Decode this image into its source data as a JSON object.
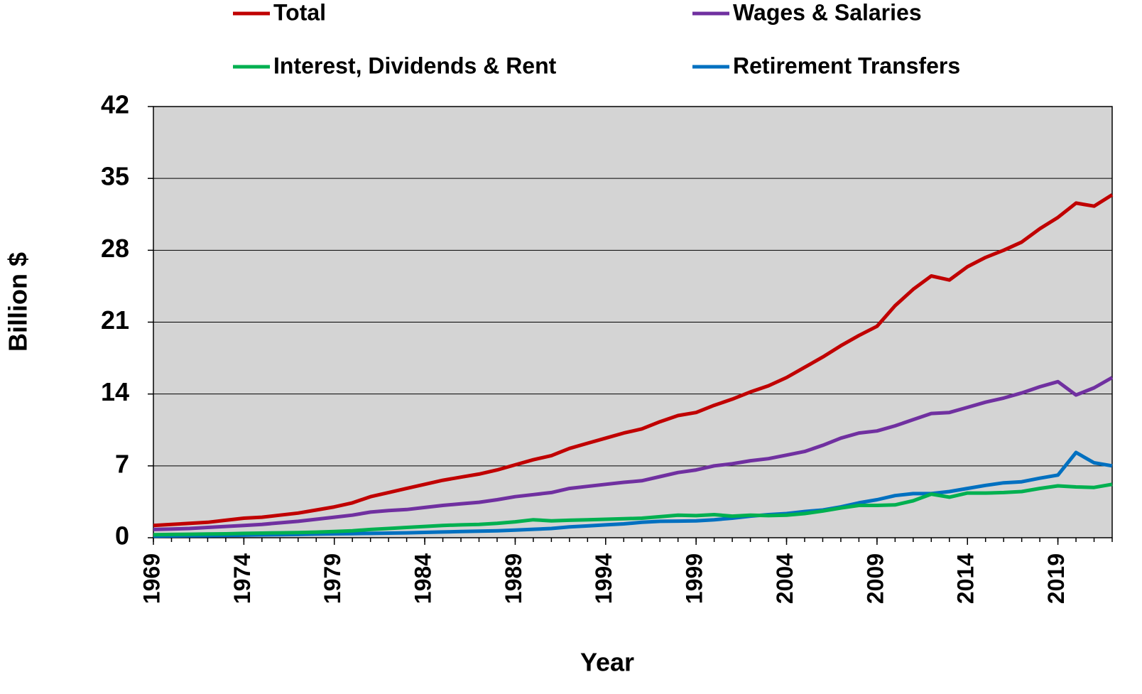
{
  "chart_data": {
    "type": "line",
    "x_label": "Year",
    "y_label": "Billion $",
    "x": [
      1969,
      1970,
      1971,
      1972,
      1973,
      1974,
      1975,
      1976,
      1977,
      1978,
      1979,
      1980,
      1981,
      1982,
      1983,
      1984,
      1985,
      1986,
      1987,
      1988,
      1989,
      1990,
      1991,
      1992,
      1993,
      1994,
      1995,
      1996,
      1997,
      1998,
      1999,
      2000,
      2001,
      2002,
      2003,
      2004,
      2005,
      2006,
      2007,
      2008,
      2009,
      2010,
      2011,
      2012,
      2013,
      2014,
      2015,
      2016,
      2017,
      2018,
      2019,
      2020,
      2021,
      2022
    ],
    "xlim": [
      1969,
      2022
    ],
    "xticks": [
      1969,
      1974,
      1979,
      1984,
      1989,
      1994,
      1999,
      2004,
      2009,
      2014,
      2019
    ],
    "ylim": [
      0,
      42
    ],
    "yticks": [
      0,
      7,
      14,
      21,
      28,
      35,
      42
    ],
    "grid": true,
    "plot_background": "#d4d4d4",
    "legend": "top",
    "series": [
      {
        "name": "Total",
        "color": "#c00000",
        "values": [
          1.2,
          1.3,
          1.4,
          1.5,
          1.7,
          1.9,
          2.0,
          2.2,
          2.4,
          2.7,
          3.0,
          3.4,
          4.0,
          4.4,
          4.8,
          5.2,
          5.6,
          5.9,
          6.2,
          6.6,
          7.1,
          7.6,
          8.0,
          8.7,
          9.2,
          9.7,
          10.2,
          10.6,
          11.3,
          11.9,
          12.2,
          12.9,
          13.5,
          14.2,
          14.8,
          15.6,
          16.6,
          17.6,
          18.7,
          19.7,
          20.6,
          22.6,
          24.2,
          25.5,
          25.1,
          26.4,
          27.3,
          28.0,
          28.8,
          30.1,
          31.2,
          32.6,
          32.3,
          33.4
        ]
      },
      {
        "name": "Wages & Salaries",
        "color": "#7030a0",
        "values": [
          0.8,
          0.85,
          0.9,
          1.0,
          1.1,
          1.2,
          1.3,
          1.45,
          1.6,
          1.8,
          2.0,
          2.2,
          2.5,
          2.65,
          2.75,
          2.95,
          3.15,
          3.3,
          3.45,
          3.7,
          4.0,
          4.2,
          4.4,
          4.8,
          5.0,
          5.2,
          5.4,
          5.55,
          5.95,
          6.35,
          6.6,
          7.0,
          7.2,
          7.5,
          7.7,
          8.05,
          8.4,
          9.0,
          9.7,
          10.2,
          10.4,
          10.9,
          11.5,
          12.1,
          12.2,
          12.7,
          13.2,
          13.6,
          14.1,
          14.7,
          15.2,
          13.9,
          14.6,
          15.6
        ]
      },
      {
        "name": "Interest, Dividends & Rent",
        "color": "#00b050",
        "values": [
          0.3,
          0.32,
          0.34,
          0.36,
          0.38,
          0.42,
          0.45,
          0.48,
          0.5,
          0.55,
          0.6,
          0.68,
          0.8,
          0.9,
          1.0,
          1.1,
          1.2,
          1.25,
          1.3,
          1.4,
          1.55,
          1.75,
          1.65,
          1.7,
          1.75,
          1.8,
          1.85,
          1.9,
          2.05,
          2.2,
          2.15,
          2.25,
          2.1,
          2.2,
          2.15,
          2.2,
          2.35,
          2.6,
          2.9,
          3.15,
          3.15,
          3.2,
          3.6,
          4.25,
          3.95,
          4.35,
          4.35,
          4.4,
          4.5,
          4.8,
          5.05,
          4.95,
          4.9,
          5.2
        ]
      },
      {
        "name": "Retirement Transfers",
        "color": "#0070c0",
        "values": [
          0.15,
          0.17,
          0.19,
          0.2,
          0.22,
          0.25,
          0.28,
          0.3,
          0.32,
          0.35,
          0.38,
          0.4,
          0.42,
          0.45,
          0.48,
          0.52,
          0.56,
          0.6,
          0.64,
          0.68,
          0.75,
          0.82,
          0.9,
          1.05,
          1.15,
          1.25,
          1.35,
          1.5,
          1.6,
          1.62,
          1.65,
          1.75,
          1.9,
          2.1,
          2.25,
          2.35,
          2.55,
          2.7,
          3.0,
          3.4,
          3.7,
          4.1,
          4.3,
          4.3,
          4.5,
          4.8,
          5.1,
          5.35,
          5.45,
          5.8,
          6.1,
          8.3,
          7.3,
          7.0
        ]
      }
    ]
  }
}
